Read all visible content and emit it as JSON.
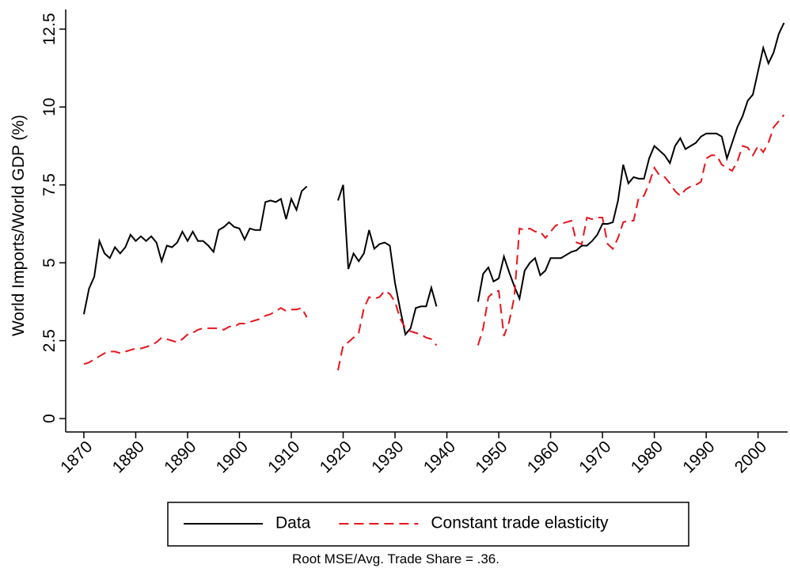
{
  "chart_data": {
    "type": "line",
    "y_label": "World Imports/World GDP (%)",
    "note": "Root MSE/Avg. Trade Share = .36.",
    "legend": "bottom",
    "x": [
      1870,
      1871,
      1872,
      1873,
      1874,
      1875,
      1876,
      1877,
      1878,
      1879,
      1880,
      1881,
      1882,
      1883,
      1884,
      1885,
      1886,
      1887,
      1888,
      1889,
      1890,
      1891,
      1892,
      1893,
      1894,
      1895,
      1896,
      1897,
      1898,
      1899,
      1900,
      1901,
      1902,
      1903,
      1904,
      1905,
      1906,
      1907,
      1908,
      1909,
      1910,
      1911,
      1912,
      1913,
      1914,
      1915,
      1916,
      1917,
      1918,
      1919,
      1920,
      1921,
      1922,
      1923,
      1924,
      1925,
      1926,
      1927,
      1928,
      1929,
      1930,
      1931,
      1932,
      1933,
      1934,
      1935,
      1936,
      1937,
      1938,
      1939,
      1940,
      1941,
      1942,
      1943,
      1944,
      1945,
      1946,
      1947,
      1948,
      1949,
      1950,
      1951,
      1952,
      1953,
      1954,
      1955,
      1956,
      1957,
      1958,
      1959,
      1960,
      1961,
      1962,
      1963,
      1964,
      1965,
      1966,
      1967,
      1968,
      1969,
      1970,
      1971,
      1972,
      1973,
      1974,
      1975,
      1976,
      1977,
      1978,
      1979,
      1980,
      1981,
      1982,
      1983,
      1984,
      1985,
      1986,
      1987,
      1988,
      1989,
      1990,
      1991,
      1992,
      1993,
      1994,
      1995,
      1996,
      1997,
      1998,
      1999,
      2000,
      2001,
      2002,
      2003,
      2004,
      2005
    ],
    "series": [
      {
        "name": "Data",
        "color": "#000000",
        "dash": false,
        "values": [
          3.35,
          4.17,
          4.55,
          5.7,
          5.3,
          5.15,
          5.5,
          5.3,
          5.5,
          5.9,
          5.7,
          5.85,
          5.7,
          5.85,
          5.65,
          5.05,
          5.55,
          5.5,
          5.65,
          6.0,
          5.7,
          6.0,
          5.7,
          5.7,
          5.55,
          5.35,
          6.05,
          6.15,
          6.3,
          6.15,
          6.1,
          5.75,
          6.1,
          6.05,
          6.05,
          6.95,
          7.0,
          6.95,
          7.05,
          6.4,
          7.05,
          6.7,
          7.3,
          7.45,
          null,
          null,
          null,
          null,
          null,
          7.0,
          7.5,
          4.8,
          5.3,
          5.05,
          5.3,
          6.05,
          5.45,
          5.6,
          5.65,
          5.55,
          4.35,
          3.5,
          2.7,
          2.9,
          3.55,
          3.6,
          3.6,
          4.2,
          3.6,
          null,
          null,
          null,
          null,
          null,
          null,
          null,
          3.75,
          4.65,
          4.85,
          4.4,
          4.5,
          5.2,
          4.7,
          4.25,
          3.85,
          4.75,
          5.0,
          5.15,
          4.6,
          4.75,
          5.15,
          5.15,
          5.15,
          5.25,
          5.35,
          5.4,
          5.55,
          5.55,
          5.7,
          5.9,
          6.25,
          6.25,
          6.3,
          7.0,
          8.15,
          7.55,
          7.75,
          7.7,
          7.7,
          8.35,
          8.75,
          8.6,
          8.45,
          8.2,
          8.75,
          9.0,
          8.65,
          8.75,
          8.85,
          9.05,
          9.15,
          9.15,
          9.15,
          9.05,
          8.35,
          8.85,
          9.35,
          9.7,
          10.2,
          10.4,
          11.15,
          11.9,
          11.4,
          11.75,
          12.35,
          12.7
        ]
      },
      {
        "name": "Constant trade elasticity",
        "color": "#e8141b",
        "dash": true,
        "values": [
          1.75,
          1.8,
          1.9,
          2.0,
          2.1,
          2.15,
          2.15,
          2.1,
          2.15,
          2.2,
          2.25,
          2.25,
          2.3,
          2.35,
          2.45,
          2.6,
          2.55,
          2.5,
          2.45,
          2.55,
          2.7,
          2.75,
          2.85,
          2.9,
          2.9,
          2.9,
          2.9,
          2.85,
          2.95,
          2.95,
          3.05,
          3.05,
          3.1,
          3.15,
          3.2,
          3.3,
          3.35,
          3.45,
          3.55,
          3.45,
          3.5,
          3.5,
          3.55,
          3.25,
          null,
          null,
          null,
          null,
          null,
          1.55,
          2.35,
          2.45,
          2.6,
          2.75,
          3.55,
          3.9,
          3.85,
          3.9,
          4.1,
          4.0,
          3.75,
          3.2,
          2.9,
          2.8,
          2.75,
          2.7,
          2.6,
          2.55,
          2.35,
          null,
          null,
          null,
          null,
          null,
          null,
          null,
          2.35,
          2.9,
          3.9,
          4.05,
          4.1,
          2.65,
          3.1,
          3.9,
          6.1,
          6.05,
          6.1,
          6.0,
          6.0,
          5.8,
          6.0,
          6.2,
          6.25,
          6.3,
          6.35,
          5.65,
          5.6,
          6.45,
          6.4,
          6.45,
          6.45,
          5.6,
          5.45,
          5.8,
          6.3,
          6.35,
          6.35,
          7.1,
          7.15,
          7.55,
          8.05,
          7.8,
          7.75,
          7.55,
          7.3,
          7.15,
          7.35,
          7.45,
          7.5,
          7.6,
          8.35,
          8.45,
          8.45,
          8.15,
          8.05,
          7.95,
          8.25,
          8.75,
          8.7,
          8.45,
          8.75,
          8.55,
          8.85,
          9.35,
          9.55,
          9.75
        ]
      }
    ],
    "xlim": [
      1866.5,
      2005.7
    ],
    "xticks": [
      1870,
      1880,
      1890,
      1900,
      1910,
      1920,
      1930,
      1940,
      1950,
      1960,
      1970,
      1980,
      1990,
      2000
    ],
    "ylim": [
      -0.43,
      13.13
    ],
    "yticks": [
      0,
      2.5,
      5,
      7.5,
      10,
      12.5
    ]
  }
}
